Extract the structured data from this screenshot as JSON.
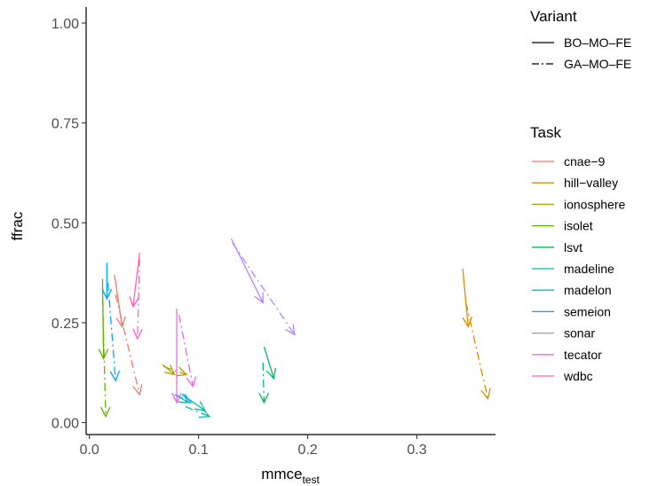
{
  "chart_data": {
    "type": "line",
    "xlabel": "mmce",
    "xlabel_sub": "test",
    "ylabel": "ffrac",
    "xlim": [
      -0.003,
      0.372
    ],
    "ylim": [
      -0.03,
      1.04
    ],
    "x_ticks": [
      0.0,
      0.1,
      0.2,
      0.3
    ],
    "x_tick_labels": [
      "0.0",
      "0.1",
      "0.2",
      "0.3"
    ],
    "y_ticks": [
      0.0,
      0.25,
      0.5,
      0.75,
      1.0
    ],
    "y_tick_labels": [
      "0.00",
      "0.25",
      "0.50",
      "0.75",
      "1.00"
    ],
    "grid": false,
    "legend_position": "right",
    "variant_legend": {
      "title": "Variant",
      "entries": [
        {
          "label": "BO–MO–FE",
          "dash": "solid"
        },
        {
          "label": "GA–MO–FE",
          "dash": "dashdot"
        }
      ]
    },
    "task_legend": {
      "title": "Task",
      "entries": [
        {
          "label": "cnae−9",
          "color": "#F8766D"
        },
        {
          "label": "hill−valley",
          "color": "#DB8E00"
        },
        {
          "label": "ionosphere",
          "color": "#AEA200"
        },
        {
          "label": "isolet",
          "color": "#64B200"
        },
        {
          "label": "lsvt",
          "color": "#00BD5C"
        },
        {
          "label": "madeline",
          "color": "#00C1A7"
        },
        {
          "label": "madelon",
          "color": "#00BADE"
        },
        {
          "label": "semeion",
          "color": "#00A6FF"
        },
        {
          "label": "sonar",
          "color": "#B385FF"
        },
        {
          "label": "tecator",
          "color": "#EF67EB"
        },
        {
          "label": "wdbc",
          "color": "#FF63B6"
        }
      ]
    },
    "arrows": [
      {
        "task": "cnae−9",
        "variant": "BO–MO–FE",
        "x0": 0.023,
        "y0": 0.37,
        "x1": 0.03,
        "y1": 0.24
      },
      {
        "task": "cnae−9",
        "variant": "GA–MO–FE",
        "x0": 0.024,
        "y0": 0.32,
        "x1": 0.046,
        "y1": 0.07
      },
      {
        "task": "hill−valley",
        "variant": "BO–MO–FE",
        "x0": 0.342,
        "y0": 0.385,
        "x1": 0.347,
        "y1": 0.24
      },
      {
        "task": "hill−valley",
        "variant": "GA–MO–FE",
        "x0": 0.345,
        "y0": 0.3,
        "x1": 0.365,
        "y1": 0.06
      },
      {
        "task": "ionosphere",
        "variant": "BO–MO–FE",
        "x0": 0.067,
        "y0": 0.145,
        "x1": 0.078,
        "y1": 0.12
      },
      {
        "task": "ionosphere",
        "variant": "GA–MO–FE",
        "x0": 0.068,
        "y0": 0.14,
        "x1": 0.089,
        "y1": 0.12
      },
      {
        "task": "isolet",
        "variant": "BO–MO–FE",
        "x0": 0.012,
        "y0": 0.36,
        "x1": 0.013,
        "y1": 0.16
      },
      {
        "task": "isolet",
        "variant": "GA–MO–FE",
        "x0": 0.012,
        "y0": 0.31,
        "x1": 0.015,
        "y1": 0.015
      },
      {
        "task": "lsvt",
        "variant": "BO–MO–FE",
        "x0": 0.16,
        "y0": 0.19,
        "x1": 0.169,
        "y1": 0.11
      },
      {
        "task": "lsvt",
        "variant": "GA–MO–FE",
        "x0": 0.159,
        "y0": 0.15,
        "x1": 0.16,
        "y1": 0.05
      },
      {
        "task": "madeline",
        "variant": "BO–MO–FE",
        "x0": 0.085,
        "y0": 0.07,
        "x1": 0.106,
        "y1": 0.03
      },
      {
        "task": "madeline",
        "variant": "GA–MO–FE",
        "x0": 0.088,
        "y0": 0.04,
        "x1": 0.11,
        "y1": 0.015
      },
      {
        "task": "madelon",
        "variant": "BO–MO–FE",
        "x0": 0.078,
        "y0": 0.07,
        "x1": 0.091,
        "y1": 0.05
      },
      {
        "task": "madelon",
        "variant": "GA–MO–FE",
        "x0": 0.079,
        "y0": 0.07,
        "x1": 0.093,
        "y1": 0.05
      },
      {
        "task": "semeion",
        "variant": "BO–MO–FE",
        "x0": 0.016,
        "y0": 0.4,
        "x1": 0.016,
        "y1": 0.31
      },
      {
        "task": "semeion",
        "variant": "GA–MO–FE",
        "x0": 0.017,
        "y0": 0.35,
        "x1": 0.024,
        "y1": 0.105
      },
      {
        "task": "sonar",
        "variant": "BO–MO–FE",
        "x0": 0.13,
        "y0": 0.46,
        "x1": 0.159,
        "y1": 0.3
      },
      {
        "task": "sonar",
        "variant": "GA–MO–FE",
        "x0": 0.131,
        "y0": 0.45,
        "x1": 0.188,
        "y1": 0.22
      },
      {
        "task": "tecator",
        "variant": "BO–MO–FE",
        "x0": 0.08,
        "y0": 0.285,
        "x1": 0.08,
        "y1": 0.05
      },
      {
        "task": "tecator",
        "variant": "GA–MO–FE",
        "x0": 0.082,
        "y0": 0.27,
        "x1": 0.095,
        "y1": 0.09
      },
      {
        "task": "wdbc",
        "variant": "BO–MO–FE",
        "x0": 0.046,
        "y0": 0.425,
        "x1": 0.04,
        "y1": 0.29
      },
      {
        "task": "wdbc",
        "variant": "GA–MO–FE",
        "x0": 0.046,
        "y0": 0.41,
        "x1": 0.044,
        "y1": 0.21
      }
    ]
  }
}
